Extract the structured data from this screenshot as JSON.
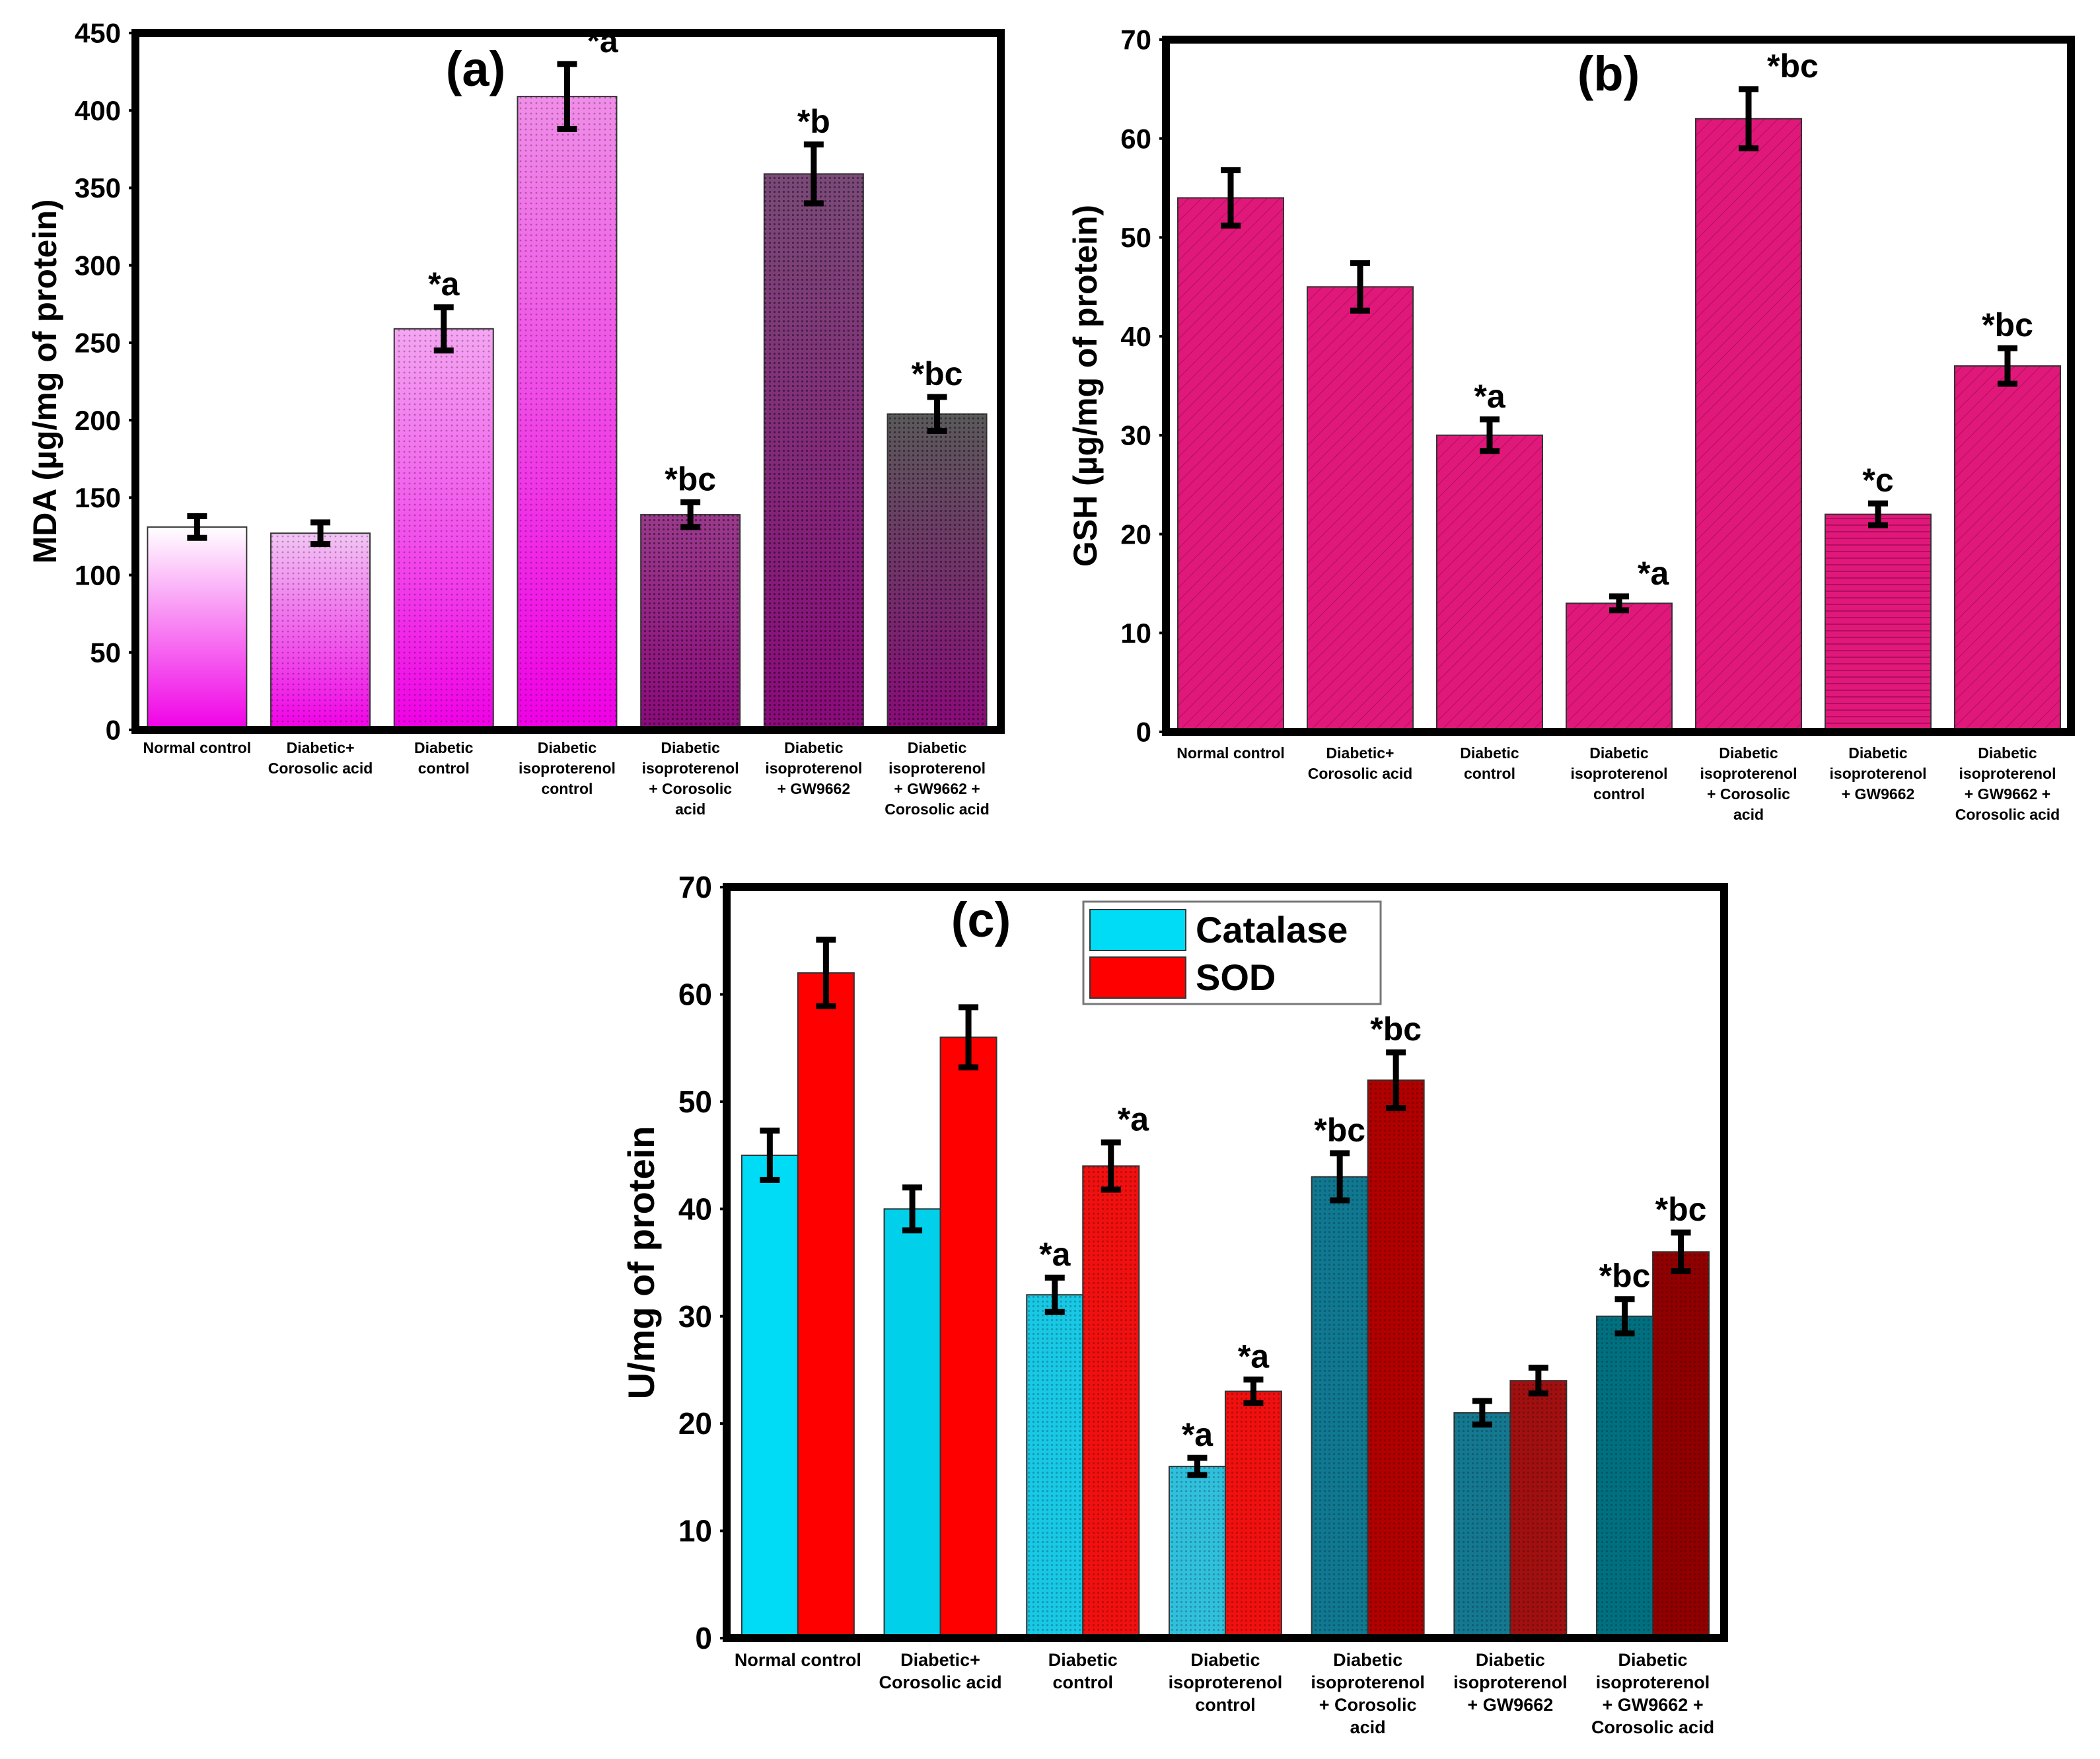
{
  "chart_data": [
    {
      "type": "bar",
      "panel_label": "(a)",
      "title": "",
      "xlabel": "",
      "ylabel": "MDA (µg/mg of protein)",
      "ylim": [
        0,
        450
      ],
      "yticks": [
        0,
        50,
        100,
        150,
        200,
        250,
        300,
        350,
        400,
        450
      ],
      "grid": false,
      "categories": [
        [
          "Normal control"
        ],
        [
          "Diabetic+",
          "Corosolic acid"
        ],
        [
          "Diabetic",
          "control"
        ],
        [
          "Diabetic",
          "isoproterenol",
          "control"
        ],
        [
          "Diabetic",
          "isoproterenol",
          "+ Corosolic",
          "acid"
        ],
        [
          "Diabetic",
          "isoproterenol",
          "+ GW9662"
        ],
        [
          "Diabetic",
          "isoproterenol",
          "+ GW9662 +",
          "Corosolic acid"
        ]
      ],
      "series": [
        {
          "name": "MDA",
          "values": [
            131,
            127,
            259,
            409,
            139,
            359,
            204
          ],
          "errors": [
            7,
            7,
            14,
            21,
            8,
            19,
            11
          ],
          "annotations": [
            "",
            "",
            "*a",
            "*a",
            "*bc",
            "*b",
            "*bc"
          ],
          "colors": [
            "#ffffff",
            "#f2c6f4",
            "#f4a6f2",
            "#f08ee8",
            "#9a3a8c",
            "#7a4a78",
            "#5a5a5a"
          ],
          "fill_bottom": "#f000e6"
        }
      ]
    },
    {
      "type": "bar",
      "panel_label": "(b)",
      "title": "",
      "xlabel": "",
      "ylabel": "GSH (µg/mg of protein)",
      "ylim": [
        0,
        70
      ],
      "yticks": [
        0,
        10,
        20,
        30,
        40,
        50,
        60,
        70
      ],
      "grid": false,
      "categories": [
        [
          "Normal control"
        ],
        [
          "Diabetic+",
          "Corosolic acid"
        ],
        [
          "Diabetic",
          "control"
        ],
        [
          "Diabetic",
          "isoproterenol",
          "control"
        ],
        [
          "Diabetic",
          "isoproterenol",
          "+ Corosolic",
          "acid"
        ],
        [
          "Diabetic",
          "isoproterenol",
          "+ GW9662"
        ],
        [
          "Diabetic",
          "isoproterenol",
          "+ GW9662 +",
          "Corosolic acid"
        ]
      ],
      "series": [
        {
          "name": "GSH",
          "values": [
            54,
            45,
            30,
            13,
            62,
            22,
            37
          ],
          "errors": [
            2.8,
            2.4,
            1.6,
            0.7,
            3.0,
            1.1,
            1.8
          ],
          "annotations": [
            "",
            "",
            "*a",
            "*a",
            "*bc",
            "*c",
            "*bc"
          ],
          "color": "#e0187a"
        }
      ]
    },
    {
      "type": "bar",
      "panel_label": "(c)",
      "title": "",
      "xlabel": "",
      "ylabel": "U/mg of protein",
      "ylim": [
        0,
        70
      ],
      "yticks": [
        0,
        10,
        20,
        30,
        40,
        50,
        60,
        70
      ],
      "grid": false,
      "legend_position": "top-center",
      "categories": [
        [
          "Normal control"
        ],
        [
          "Diabetic+",
          "Corosolic acid"
        ],
        [
          "Diabetic",
          "control"
        ],
        [
          "Diabetic",
          "isoproterenol",
          "control"
        ],
        [
          "Diabetic",
          "isoproterenol",
          "+ Corosolic",
          "acid"
        ],
        [
          "Diabetic",
          "isoproterenol",
          "+ GW9662"
        ],
        [
          "Diabetic",
          "isoproterenol",
          "+ GW9662 +",
          "Corosolic acid"
        ]
      ],
      "series": [
        {
          "name": "Catalase",
          "values": [
            45,
            40,
            32,
            16,
            43,
            21,
            30
          ],
          "errors": [
            2.3,
            2.0,
            1.6,
            0.8,
            2.2,
            1.1,
            1.6
          ],
          "annotations": [
            "",
            "",
            "*a",
            "*a",
            "*bc",
            "",
            "*bc"
          ],
          "colors": [
            "#00dcf5",
            "#00d0ea",
            "#18c8e4",
            "#30c0dc",
            "#107890",
            "#147890",
            "#007080"
          ],
          "legend_color": "#00dcf5"
        },
        {
          "name": "SOD",
          "values": [
            62,
            56,
            44,
            23,
            52,
            24,
            36
          ],
          "errors": [
            3.1,
            2.8,
            2.2,
            1.1,
            2.6,
            1.2,
            1.8
          ],
          "annotations": [
            "",
            "",
            "*a",
            "*a",
            "*bc",
            "",
            "*bc"
          ],
          "colors": [
            "#ff0000",
            "#ff0000",
            "#f01010",
            "#f01010",
            "#b00000",
            "#a01010",
            "#900000"
          ],
          "legend_color": "#ff0000"
        }
      ]
    }
  ]
}
